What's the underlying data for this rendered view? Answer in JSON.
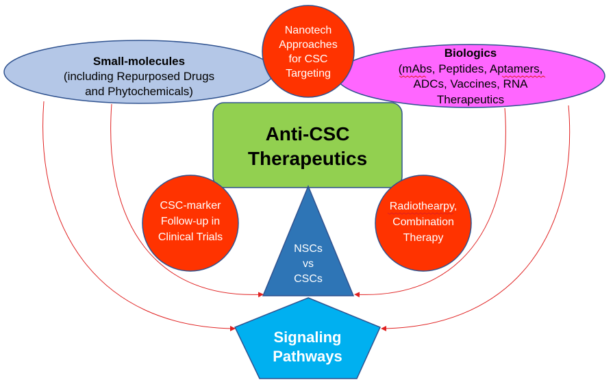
{
  "nodes": {
    "small_molecules": {
      "title": "Small-molecules",
      "lines": [
        "(including Repurposed Drugs",
        "and Phytochemicals)"
      ]
    },
    "nanotech": {
      "lines": [
        "Nanotech",
        "Approaches",
        "for CSC",
        "Targeting"
      ]
    },
    "biologics": {
      "title": "Biologics",
      "lines": [
        "(mAbs, Peptides, Aptamers,",
        "ADCs, Vaccines, RNA",
        "Therapeutics"
      ]
    },
    "anti_csc": {
      "lines": [
        "Anti-CSC",
        "Therapeutics"
      ]
    },
    "csc_marker": {
      "lines": [
        "CSC-marker",
        "Follow-up in",
        "Clinical Trials"
      ]
    },
    "radiotherapy": {
      "lines": [
        "Radiothearpy,",
        "Combination",
        "Therapy"
      ]
    },
    "nscs_cscs": {
      "lines": [
        "NSCs",
        "vs",
        "CSCs"
      ]
    },
    "signaling": {
      "lines": [
        "Signaling",
        "Pathways"
      ]
    }
  },
  "colors": {
    "small_molecules_fill": "#b4c7e7",
    "biologics_fill": "#ff66ff",
    "red_circle_fill": "#ff3300",
    "anti_csc_fill": "#92d050",
    "triangle_fill": "#2e75b6",
    "pentagon_fill": "#00b0f0",
    "arrow_color": "#e02020",
    "outline_color": "#2f528f"
  }
}
